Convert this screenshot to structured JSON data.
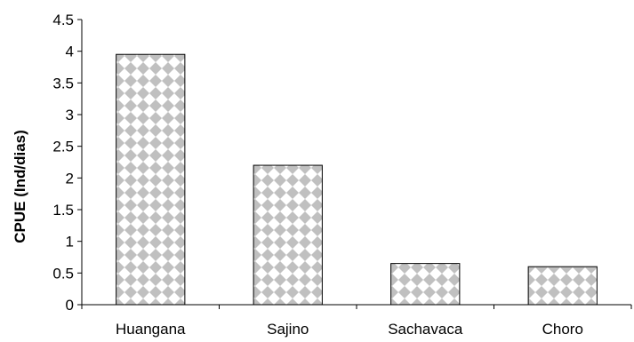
{
  "chart_data": {
    "type": "bar",
    "title": "",
    "xlabel": "",
    "ylabel": "CPUE (Ind/dias)",
    "categories": [
      "Huangana",
      "Sajino",
      "Sachavaca",
      "Choro"
    ],
    "values": [
      3.95,
      2.2,
      0.65,
      0.6
    ],
    "ylim": [
      0,
      4.5
    ],
    "yticks": [
      "0",
      "0.5",
      "1",
      "1.5",
      "2",
      "2.5",
      "3",
      "3.5",
      "4",
      "4.5"
    ],
    "grid": false,
    "legend": "none",
    "bar_fill": "checkerboard-diamond",
    "colors": {
      "pattern_light": "#ffffff",
      "pattern_dark": "#c0c0c0",
      "bar_outline": "#000000",
      "axis": "#000000"
    }
  }
}
